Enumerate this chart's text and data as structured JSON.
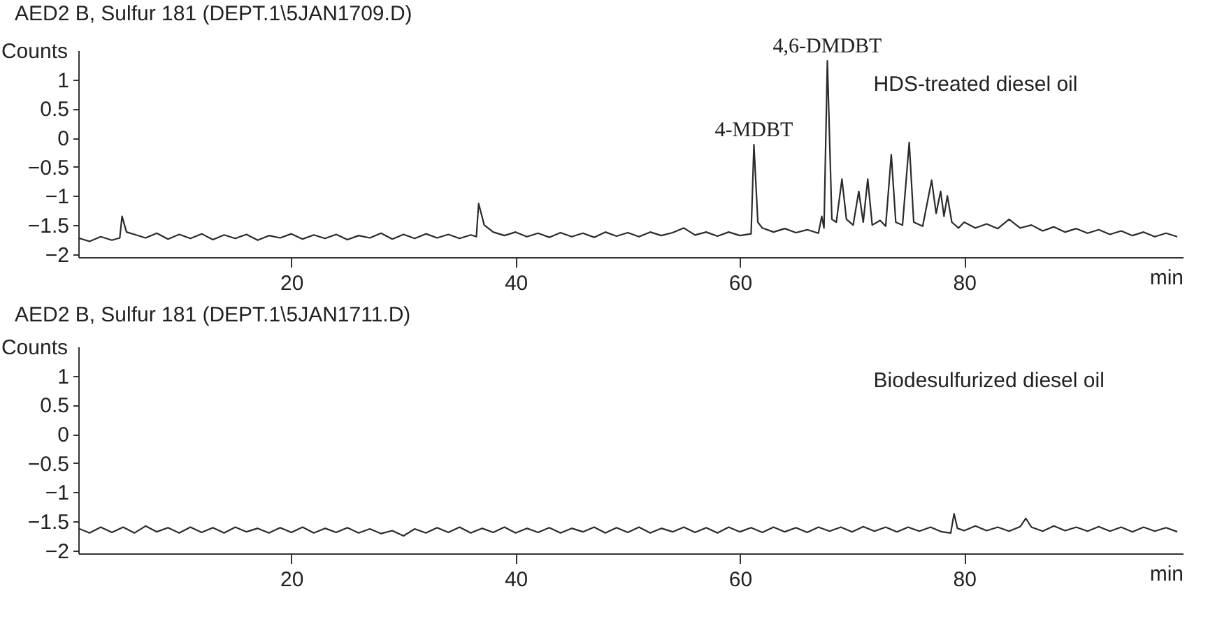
{
  "chart_data": [
    {
      "type": "line",
      "title": "AED2 B, Sulfur 181 (DEPT.1\\5JAN1709.D)",
      "xlabel": "min",
      "ylabel": "Counts",
      "xlim": [
        1,
        99.5
      ],
      "ylim": [
        -2.05,
        1.5
      ],
      "xticks": [
        20,
        40,
        60,
        80
      ],
      "yticks": [
        -2,
        -1.5,
        -1,
        -0.5,
        0,
        0.5,
        1
      ],
      "grid": false,
      "annotations": [
        {
          "text": "4-MDBT",
          "x": 61.25,
          "y": -0.12
        },
        {
          "text": "4,6-DMDBT",
          "x": 67.8,
          "y": 1.32
        },
        "HDS-treated diesel oil"
      ],
      "series": [
        {
          "color": "#2b2b2b",
          "x": [
            1,
            2,
            3,
            4,
            4.7,
            4.9,
            5.3,
            6,
            7,
            8,
            9,
            10,
            11,
            12,
            13,
            14,
            15,
            16,
            17,
            18,
            19,
            20,
            21,
            22,
            23,
            24,
            25,
            26,
            27,
            28,
            29,
            30,
            31,
            32,
            33,
            34,
            35,
            36,
            36.5,
            36.7,
            37.2,
            38,
            39,
            40,
            41,
            42,
            43,
            44,
            45,
            46,
            47,
            48,
            49,
            50,
            51,
            52,
            53,
            54,
            55,
            56,
            57,
            58,
            59,
            60,
            61,
            61.25,
            61.6,
            62,
            63,
            64,
            65,
            66,
            67,
            67.3,
            67.5,
            67.8,
            68.2,
            68.6,
            69.1,
            69.5,
            70.1,
            70.6,
            71,
            71.4,
            71.8,
            72.5,
            73,
            73.5,
            73.9,
            74.5,
            75.1,
            75.5,
            76.3,
            77.1,
            77.5,
            77.9,
            78.2,
            78.5,
            78.9,
            79.5,
            80,
            81,
            82,
            83,
            84,
            85,
            86,
            87,
            88,
            89,
            90,
            91,
            92,
            93,
            94,
            95,
            96,
            97,
            98,
            99
          ],
          "values": [
            -1.72,
            -1.78,
            -1.7,
            -1.76,
            -1.72,
            -1.35,
            -1.62,
            -1.66,
            -1.72,
            -1.64,
            -1.74,
            -1.66,
            -1.73,
            -1.65,
            -1.75,
            -1.67,
            -1.73,
            -1.66,
            -1.76,
            -1.68,
            -1.72,
            -1.65,
            -1.74,
            -1.67,
            -1.73,
            -1.66,
            -1.75,
            -1.68,
            -1.72,
            -1.64,
            -1.74,
            -1.66,
            -1.73,
            -1.65,
            -1.72,
            -1.66,
            -1.73,
            -1.67,
            -1.7,
            -1.13,
            -1.5,
            -1.62,
            -1.68,
            -1.62,
            -1.7,
            -1.64,
            -1.71,
            -1.63,
            -1.7,
            -1.64,
            -1.71,
            -1.62,
            -1.69,
            -1.63,
            -1.7,
            -1.62,
            -1.68,
            -1.63,
            -1.55,
            -1.67,
            -1.62,
            -1.69,
            -1.62,
            -1.68,
            -1.65,
            -0.12,
            -1.45,
            -1.55,
            -1.62,
            -1.56,
            -1.63,
            -1.58,
            -1.64,
            -1.35,
            -1.55,
            1.32,
            -1.4,
            -1.45,
            -0.71,
            -1.4,
            -1.5,
            -0.92,
            -1.45,
            -0.71,
            -1.5,
            -1.42,
            -1.52,
            -0.29,
            -1.45,
            -1.5,
            -0.08,
            -1.45,
            -1.52,
            -0.73,
            -1.3,
            -0.92,
            -1.35,
            -1.0,
            -1.45,
            -1.55,
            -1.45,
            -1.55,
            -1.48,
            -1.56,
            -1.4,
            -1.55,
            -1.5,
            -1.6,
            -1.53,
            -1.62,
            -1.56,
            -1.64,
            -1.58,
            -1.66,
            -1.6,
            -1.68,
            -1.62,
            -1.7,
            -1.64,
            -1.7
          ]
        }
      ]
    },
    {
      "type": "line",
      "title": "AED2 B, Sulfur 181 (DEPT.1\\5JAN1711.D)",
      "xlabel": "min",
      "ylabel": "Counts",
      "xlim": [
        1,
        99.5
      ],
      "ylim": [
        -2.05,
        1.5
      ],
      "xticks": [
        20,
        40,
        60,
        80
      ],
      "yticks": [
        -2,
        -1.5,
        -1,
        -0.5,
        0,
        0.5,
        1
      ],
      "grid": false,
      "annotations": [
        "Biodesulfurized diesel oil"
      ],
      "series": [
        {
          "color": "#2b2b2b",
          "x": [
            1,
            2,
            3,
            4,
            5,
            6,
            7,
            8,
            9,
            10,
            11,
            12,
            13,
            14,
            15,
            16,
            17,
            18,
            19,
            20,
            21,
            22,
            23,
            24,
            25,
            26,
            27,
            28,
            29,
            30,
            31,
            32,
            33,
            34,
            35,
            36,
            37,
            38,
            39,
            40,
            41,
            42,
            43,
            44,
            45,
            46,
            47,
            48,
            49,
            50,
            51,
            52,
            53,
            54,
            55,
            56,
            57,
            58,
            59,
            60,
            61,
            62,
            63,
            64,
            65,
            66,
            67,
            68,
            69,
            70,
            71,
            72,
            73,
            74,
            75,
            76,
            77,
            78,
            78.8,
            79.1,
            79.4,
            80,
            81,
            82,
            83,
            84,
            85,
            85.5,
            86,
            87,
            88,
            89,
            90,
            91,
            92,
            93,
            94,
            95,
            96,
            97,
            98,
            99
          ],
          "values": [
            -1.62,
            -1.7,
            -1.6,
            -1.69,
            -1.6,
            -1.7,
            -1.58,
            -1.68,
            -1.61,
            -1.7,
            -1.6,
            -1.69,
            -1.61,
            -1.7,
            -1.6,
            -1.68,
            -1.62,
            -1.7,
            -1.61,
            -1.69,
            -1.6,
            -1.7,
            -1.62,
            -1.69,
            -1.61,
            -1.7,
            -1.63,
            -1.71,
            -1.66,
            -1.75,
            -1.63,
            -1.7,
            -1.61,
            -1.69,
            -1.6,
            -1.7,
            -1.62,
            -1.69,
            -1.6,
            -1.7,
            -1.62,
            -1.69,
            -1.61,
            -1.7,
            -1.62,
            -1.68,
            -1.6,
            -1.7,
            -1.61,
            -1.69,
            -1.6,
            -1.7,
            -1.62,
            -1.68,
            -1.6,
            -1.69,
            -1.61,
            -1.7,
            -1.6,
            -1.68,
            -1.61,
            -1.69,
            -1.6,
            -1.68,
            -1.61,
            -1.69,
            -1.6,
            -1.67,
            -1.6,
            -1.68,
            -1.59,
            -1.67,
            -1.6,
            -1.68,
            -1.6,
            -1.67,
            -1.6,
            -1.68,
            -1.7,
            -1.37,
            -1.62,
            -1.66,
            -1.58,
            -1.66,
            -1.6,
            -1.67,
            -1.59,
            -1.45,
            -1.6,
            -1.67,
            -1.58,
            -1.66,
            -1.6,
            -1.67,
            -1.59,
            -1.67,
            -1.6,
            -1.68,
            -1.6,
            -1.67,
            -1.61,
            -1.68
          ]
        }
      ]
    }
  ]
}
